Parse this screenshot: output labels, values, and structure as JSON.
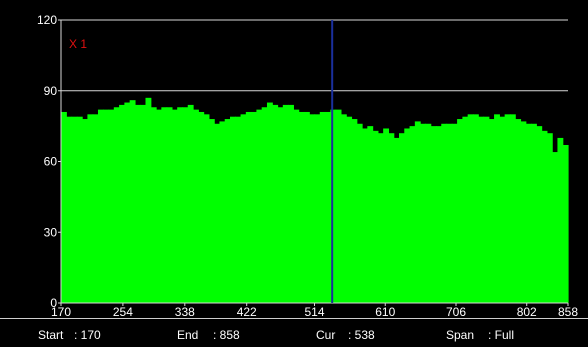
{
  "chart_data": {
    "type": "bar",
    "annotation": "X 1",
    "ylim": [
      0,
      120
    ],
    "y_ticks": [
      0,
      30,
      60,
      90,
      120
    ],
    "x_range": [
      170,
      858
    ],
    "x_ticks": [
      170,
      254,
      338,
      422,
      514,
      610,
      706,
      802,
      858
    ],
    "cursor_x": 538,
    "grid": "horizontal at 90",
    "series": [
      {
        "color": "#00ff00",
        "values": [
          81,
          79,
          79,
          79,
          78,
          80,
          80,
          82,
          82,
          82,
          83,
          84,
          85,
          86,
          84,
          84,
          87,
          83,
          82,
          83,
          83,
          82,
          83,
          83,
          84,
          82,
          81,
          80,
          78,
          76,
          77,
          78,
          79,
          79,
          80,
          81,
          81,
          82,
          83,
          85,
          84,
          83,
          84,
          84,
          82,
          81,
          81,
          80,
          80,
          81,
          81,
          82,
          82,
          80,
          79,
          78,
          76,
          74,
          75,
          73,
          72,
          74,
          72,
          70,
          72,
          74,
          75,
          77,
          76,
          76,
          75,
          75,
          76,
          76,
          76,
          78,
          79,
          80,
          80,
          79,
          79,
          78,
          80,
          79,
          80,
          80,
          78,
          77,
          76,
          76,
          75,
          73,
          72,
          64,
          70,
          67
        ]
      }
    ]
  },
  "status": {
    "start_label": "Start",
    "start_value": ": 170",
    "end_label": "End",
    "end_value": ": 858",
    "cur_label": "Cur",
    "cur_value": ": 538",
    "span_label": "Span",
    "span_value": ": Full"
  },
  "colors": {
    "background": "#000000",
    "bars": "#00ff00",
    "cursor": "#1a2f9c",
    "axes": "#d8d8d8",
    "annotation": "#e01010"
  }
}
